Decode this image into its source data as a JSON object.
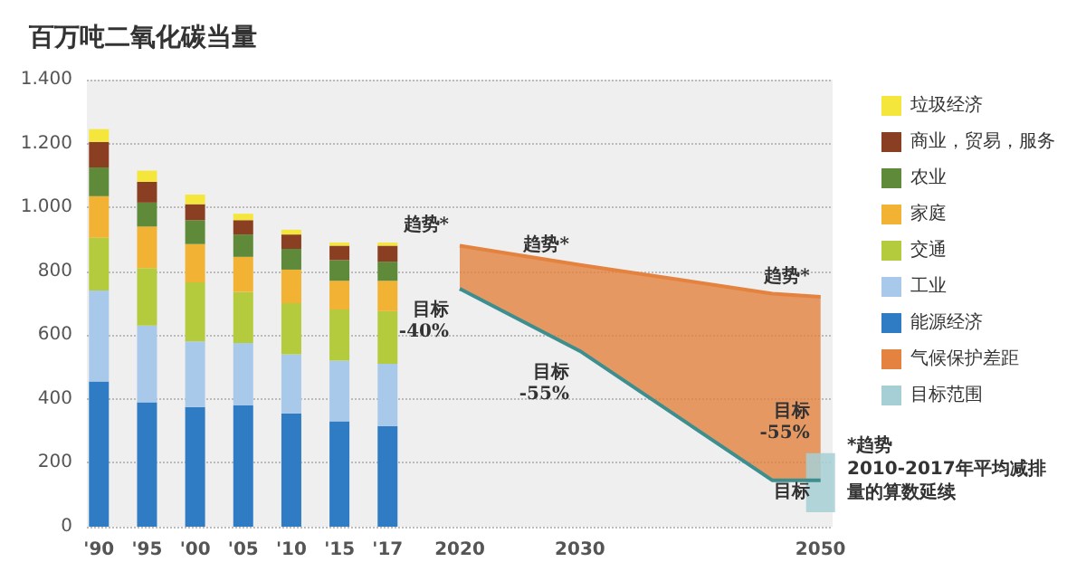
{
  "chart_data": {
    "type": "bar",
    "title": "百万吨二氧化碳当量",
    "categories": [
      "'90",
      null,
      "'95",
      null,
      "'00",
      null,
      "'05",
      null,
      "'10",
      null,
      "'15",
      null,
      "'17",
      null,
      null,
      "2020",
      null,
      null,
      null,
      null,
      "2030",
      null,
      null,
      null,
      null,
      null,
      null,
      null,
      null,
      null,
      "2050"
    ],
    "stacked": true,
    "series": [
      {
        "name": "能源经济",
        "color": "#2f7cc4",
        "values": [
          455,
          null,
          390,
          null,
          375,
          null,
          380,
          null,
          355,
          null,
          330,
          null,
          315,
          null,
          null,
          null,
          null,
          null,
          null,
          null,
          null,
          null,
          null,
          null,
          null,
          null,
          null,
          null,
          null,
          null,
          null
        ]
      },
      {
        "name": "工业",
        "color": "#a9c9ea",
        "values": [
          285,
          null,
          240,
          null,
          205,
          null,
          195,
          null,
          185,
          null,
          190,
          null,
          195,
          null,
          null,
          null,
          null,
          null,
          null,
          null,
          null,
          null,
          null,
          null,
          null,
          null,
          null,
          null,
          null,
          null,
          null
        ]
      },
      {
        "name": "交通",
        "color": "#b3cb3c",
        "values": [
          165,
          null,
          180,
          null,
          185,
          null,
          160,
          null,
          160,
          null,
          160,
          null,
          165,
          null,
          null,
          null,
          null,
          null,
          null,
          null,
          null,
          null,
          null,
          null,
          null,
          null,
          null,
          null,
          null,
          null,
          null
        ]
      },
      {
        "name": "家庭",
        "color": "#f2b234",
        "values": [
          130,
          null,
          130,
          null,
          120,
          null,
          110,
          null,
          105,
          null,
          90,
          null,
          95,
          null,
          null,
          null,
          null,
          null,
          null,
          null,
          null,
          null,
          null,
          null,
          null,
          null,
          null,
          null,
          null,
          null,
          null
        ]
      },
      {
        "name": "农业",
        "color": "#5f8a3a",
        "values": [
          90,
          null,
          75,
          null,
          75,
          null,
          70,
          null,
          65,
          null,
          65,
          null,
          60,
          null,
          null,
          null,
          null,
          null,
          null,
          null,
          null,
          null,
          null,
          null,
          null,
          null,
          null,
          null,
          null,
          null,
          null
        ]
      },
      {
        "name": "商业，贸易，服务",
        "color": "#8a3f22",
        "values": [
          80,
          null,
          65,
          null,
          50,
          null,
          45,
          null,
          45,
          null,
          45,
          null,
          50,
          null,
          null,
          null,
          null,
          null,
          null,
          null,
          null,
          null,
          null,
          null,
          null,
          null,
          null,
          null,
          null,
          null,
          null
        ]
      },
      {
        "name": "垃圾经济",
        "color": "#f5e63c",
        "values": [
          40,
          null,
          35,
          null,
          30,
          null,
          20,
          null,
          15,
          null,
          10,
          null,
          10,
          null,
          null,
          null,
          null,
          null,
          null,
          null,
          null,
          null,
          null,
          null,
          null,
          null,
          null,
          null,
          null,
          null,
          null
        ]
      },
      {
        "name": "气候保护差距",
        "type": "line",
        "color": "#e4823f",
        "values": [
          null,
          null,
          null,
          null,
          null,
          null,
          null,
          null,
          null,
          null,
          null,
          null,
          null,
          null,
          null,
          880,
          null,
          null,
          null,
          null,
          820,
          null,
          null,
          null,
          null,
          null,
          null,
          null,
          730,
          null,
          720
        ],
        "lower": [
          null,
          null,
          null,
          null,
          null,
          null,
          null,
          null,
          null,
          null,
          null,
          null,
          null,
          null,
          null,
          745,
          null,
          null,
          null,
          null,
          550,
          null,
          null,
          null,
          null,
          null,
          null,
          null,
          145,
          null,
          145
        ],
        "upper": [
          null,
          null,
          null,
          null,
          null,
          null,
          null,
          null,
          null,
          null,
          null,
          null,
          null,
          null,
          null,
          880,
          null,
          null,
          null,
          null,
          820,
          null,
          null,
          null,
          null,
          null,
          null,
          null,
          730,
          null,
          720
        ]
      },
      {
        "type": "line",
        "color": "#3d8f8f",
        "values": [
          null,
          null,
          null,
          null,
          null,
          null,
          null,
          null,
          null,
          null,
          null,
          null,
          null,
          null,
          null,
          745,
          null,
          null,
          null,
          null,
          550,
          null,
          null,
          null,
          null,
          null,
          null,
          null,
          145,
          null,
          145
        ]
      },
      {
        "name": "目标范围",
        "color": "#a6cfd5",
        "base": [
          null,
          null,
          null,
          null,
          null,
          null,
          null,
          null,
          null,
          null,
          null,
          null,
          null,
          null,
          null,
          null,
          null,
          null,
          null,
          null,
          null,
          null,
          null,
          null,
          null,
          null,
          null,
          null,
          null,
          null,
          45
        ],
        "values": [
          null,
          null,
          null,
          null,
          null,
          null,
          null,
          null,
          null,
          null,
          null,
          null,
          null,
          null,
          null,
          null,
          null,
          null,
          null,
          null,
          null,
          null,
          null,
          null,
          null,
          null,
          null,
          null,
          null,
          null,
          185
        ]
      }
    ],
    "ylim": [
      0,
      1400
    ],
    "yticks": [
      {
        "value": 0,
        "label": "0"
      },
      {
        "value": 200,
        "label": "200"
      },
      {
        "value": 400,
        "label": "400"
      },
      {
        "value": 600,
        "label": "600"
      },
      {
        "value": 800,
        "label": "800"
      },
      {
        "value": 1000,
        "label": "1.000"
      },
      {
        "value": 1200,
        "label": "1.200"
      },
      {
        "value": 1400,
        "label": "1.400"
      }
    ],
    "grid": "y",
    "legend": "right",
    "annotations": [
      {
        "text": "趋势*",
        "x": "2020",
        "y": 880
      },
      {
        "text": "趋势*",
        "x": "2030",
        "y": 820
      },
      {
        "text": "趋势*",
        "x": "2050",
        "y": 720
      },
      {
        "text": "目标\n-40%",
        "x": "2020",
        "y": 745
      },
      {
        "text": "目标\n-55%",
        "x": "2030",
        "y": 550
      },
      {
        "text": "目标\n-55%",
        "x": "2050",
        "y": 230
      },
      {
        "text": "目标",
        "x": "2050",
        "y": 45
      },
      "*趋势\n2010-2017年平均减排量的算数延续"
    ]
  }
}
